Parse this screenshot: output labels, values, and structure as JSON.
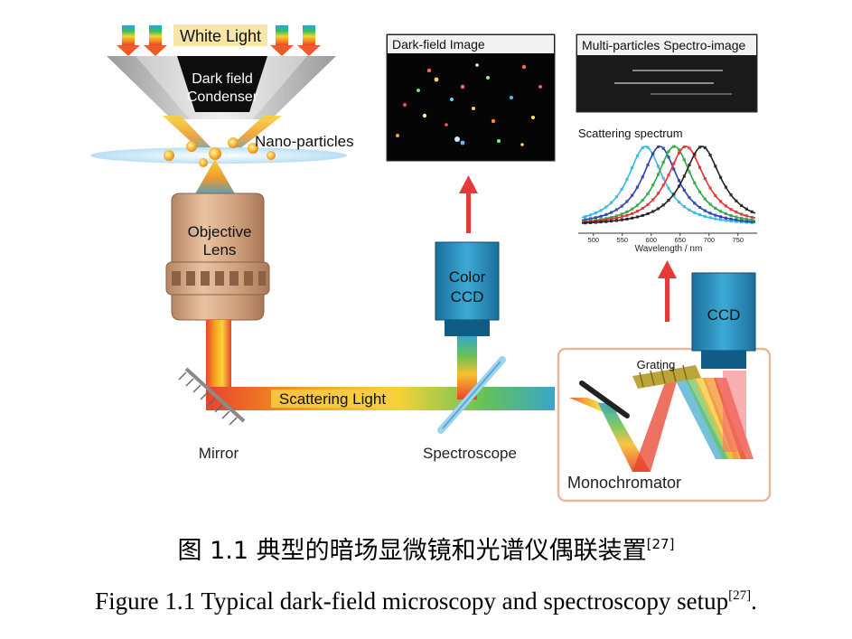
{
  "labels": {
    "white_light": "White Light",
    "condenser_line1": "Dark field",
    "condenser_line2": "Condenser",
    "nano_particles": "Nano-particles",
    "objective_line1": "Objective",
    "objective_line2": "Lens",
    "mirror": "Mirror",
    "scattering_light": "Scattering Light",
    "spectroscope": "Spectroscope",
    "color_ccd_line1": "Color",
    "color_ccd_line2": "CCD",
    "dark_field_image": "Dark-field Image",
    "multi_particles": "Multi-particles Spectro-image",
    "scattering_spectrum": "Scattering spectrum",
    "ccd": "CCD",
    "grating": "Grating",
    "monochromator": "Monochromator"
  },
  "chart_data": {
    "type": "line",
    "title": "Scattering spectrum",
    "xlabel": "Wavelength / nm",
    "ylabel": "",
    "xlim": [
      480,
      780
    ],
    "xticks": [
      "500",
      "550",
      "600",
      "650",
      "700",
      "750"
    ],
    "series": [
      {
        "color": "#35b8e0",
        "peak": 590,
        "width": 38
      },
      {
        "color": "#2c3fb5",
        "peak": 615,
        "width": 38
      },
      {
        "color": "#2aa845",
        "peak": 640,
        "width": 38
      },
      {
        "color": "#e53030",
        "peak": 660,
        "width": 40
      },
      {
        "color": "#222222",
        "peak": 688,
        "width": 40
      }
    ]
  },
  "caption": {
    "cn": "图 1.1 典型的暗场显微镜和光谱仪偶联装置",
    "en": "Figure 1.1 Typical dark-field microscopy and spectroscopy setup",
    "ref": "[27]",
    "en_end": "."
  }
}
